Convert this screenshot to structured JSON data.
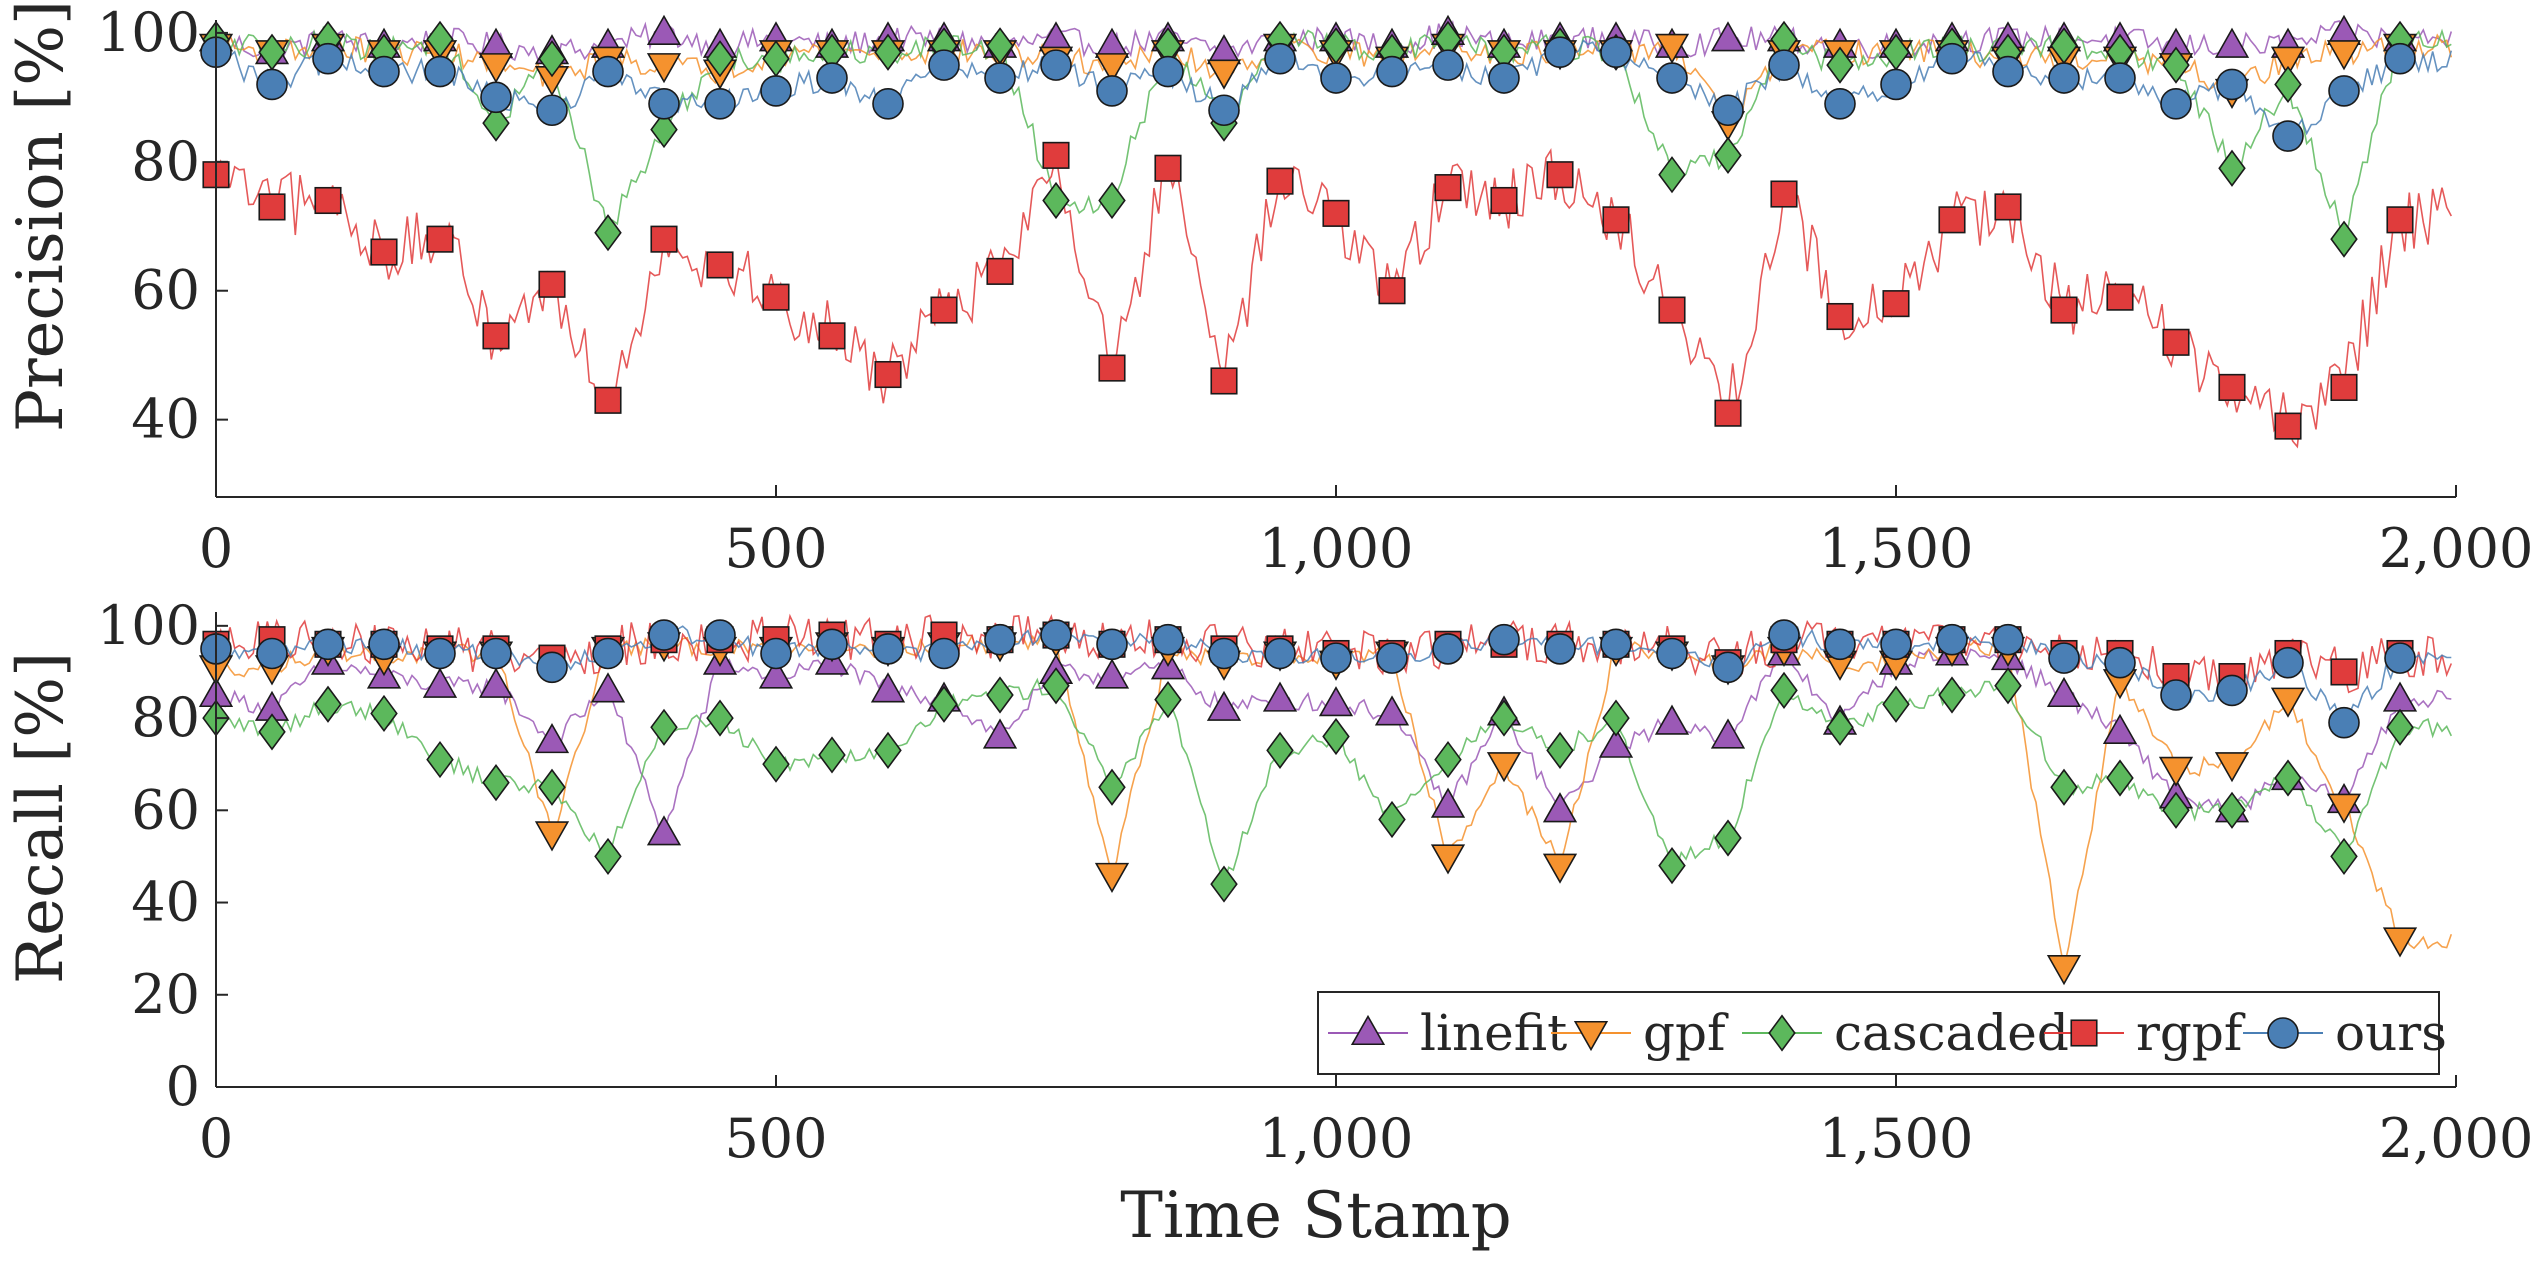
{
  "colors": {
    "linefit": "#9b59b6",
    "gpf": "#f5922e",
    "cascaded": "#5cb85c",
    "rgpf": "#e03c3c",
    "ours": "#4a7fb5"
  },
  "chart_data": [
    {
      "type": "line",
      "ylabel": "Precision [%]",
      "xlabel": "",
      "xlim": [
        0,
        2000
      ],
      "ylim": [
        28,
        102
      ],
      "xticks": [
        0,
        500,
        1000,
        1500,
        2000
      ],
      "xtick_labels": [
        "0",
        "500",
        "1,000",
        "1,500",
        "2,000"
      ],
      "yticks": [
        40,
        60,
        80,
        100
      ],
      "ytick_labels": [
        "40",
        "60",
        "80",
        "100"
      ],
      "x": [
        0,
        50,
        100,
        150,
        200,
        250,
        300,
        350,
        400,
        450,
        500,
        550,
        600,
        650,
        700,
        750,
        800,
        850,
        900,
        950,
        1000,
        1050,
        1100,
        1150,
        1200,
        1250,
        1300,
        1350,
        1400,
        1450,
        1500,
        1550,
        1600,
        1650,
        1700,
        1750,
        1800,
        1850,
        1900,
        1950
      ],
      "series": [
        {
          "name": "linefit",
          "marker": "triangle-up",
          "values": [
            99,
            97,
            99,
            98,
            99,
            98,
            97,
            98,
            100,
            98,
            99,
            98,
            99,
            99,
            98,
            99,
            98,
            99,
            97,
            99,
            99,
            98,
            100,
            98,
            99,
            99,
            98,
            99,
            99,
            98,
            98,
            99,
            99,
            99,
            99,
            98,
            98,
            98,
            100,
            99
          ]
        },
        {
          "name": "gpf",
          "marker": "triangle-down",
          "values": [
            98,
            97,
            98,
            97,
            97,
            95,
            93,
            96,
            95,
            94,
            97,
            97,
            97,
            97,
            97,
            96,
            95,
            97,
            94,
            98,
            97,
            96,
            98,
            97,
            97,
            97,
            98,
            86,
            97,
            97,
            97,
            97,
            96,
            96,
            96,
            95,
            91,
            96,
            97,
            98
          ]
        },
        {
          "name": "cascaded",
          "marker": "diamond",
          "values": [
            99,
            97,
            99,
            97,
            99,
            86,
            96,
            69,
            85,
            96,
            96,
            97,
            97,
            98,
            98,
            74,
            74,
            98,
            86,
            99,
            98,
            97,
            99,
            97,
            98,
            97,
            78,
            81,
            99,
            95,
            97,
            98,
            97,
            98,
            97,
            95,
            79,
            92,
            68,
            99
          ]
        },
        {
          "name": "rgpf",
          "marker": "square",
          "values": [
            78,
            73,
            74,
            66,
            68,
            53,
            61,
            43,
            68,
            64,
            59,
            53,
            47,
            57,
            63,
            81,
            48,
            79,
            46,
            77,
            72,
            60,
            76,
            74,
            78,
            71,
            57,
            41,
            75,
            56,
            58,
            71,
            73,
            57,
            59,
            52,
            45,
            39,
            45,
            71
          ]
        },
        {
          "name": "ours",
          "marker": "circle",
          "values": [
            97,
            92,
            96,
            94,
            94,
            90,
            88,
            94,
            89,
            89,
            91,
            93,
            89,
            95,
            93,
            95,
            91,
            94,
            88,
            96,
            93,
            94,
            95,
            93,
            97,
            97,
            93,
            88,
            95,
            89,
            92,
            96,
            94,
            93,
            93,
            89,
            92,
            84,
            91,
            96
          ]
        }
      ]
    },
    {
      "type": "line",
      "ylabel": "Recall [%]",
      "xlabel": "Time Stamp",
      "xlim": [
        0,
        2000
      ],
      "ylim": [
        0,
        103
      ],
      "xticks": [
        0,
        500,
        1000,
        1500,
        2000
      ],
      "xtick_labels": [
        "0",
        "500",
        "1,000",
        "1,500",
        "2,000"
      ],
      "yticks": [
        0,
        20,
        40,
        60,
        80,
        100
      ],
      "ytick_labels": [
        "0",
        "20",
        "40",
        "60",
        "80",
        "100"
      ],
      "x": [
        0,
        50,
        100,
        150,
        200,
        250,
        300,
        350,
        400,
        450,
        500,
        550,
        600,
        650,
        700,
        750,
        800,
        850,
        900,
        950,
        1000,
        1050,
        1100,
        1150,
        1200,
        1250,
        1300,
        1350,
        1400,
        1450,
        1500,
        1550,
        1600,
        1650,
        1700,
        1750,
        1800,
        1850,
        1900,
        1950
      ],
      "series": [
        {
          "name": "linefit",
          "marker": "triangle-up",
          "values": [
            85,
            82,
            92,
            89,
            87,
            87,
            75,
            86,
            55,
            92,
            89,
            92,
            86,
            84,
            76,
            90,
            89,
            91,
            82,
            84,
            83,
            81,
            61,
            81,
            60,
            74,
            79,
            76,
            94,
            79,
            92,
            94,
            93,
            85,
            77,
            63,
            60,
            67,
            62,
            84
          ]
        },
        {
          "name": "gpf",
          "marker": "triangle-down",
          "values": [
            91,
            91,
            95,
            93,
            94,
            94,
            55,
            95,
            96,
            95,
            95,
            96,
            95,
            96,
            96,
            97,
            46,
            95,
            92,
            94,
            92,
            94,
            50,
            70,
            48,
            95,
            94,
            91,
            95,
            92,
            92,
            95,
            95,
            26,
            88,
            69,
            70,
            84,
            61,
            32
          ]
        },
        {
          "name": "cascaded",
          "marker": "diamond",
          "values": [
            80,
            77,
            83,
            81,
            71,
            66,
            65,
            50,
            78,
            80,
            70,
            72,
            73,
            83,
            85,
            87,
            65,
            84,
            44,
            73,
            76,
            58,
            71,
            80,
            73,
            80,
            48,
            54,
            86,
            78,
            83,
            85,
            87,
            65,
            67,
            60,
            60,
            67,
            50,
            78
          ]
        },
        {
          "name": "rgpf",
          "marker": "square",
          "values": [
            96,
            97,
            96,
            96,
            95,
            95,
            93,
            95,
            97,
            97,
            97,
            98,
            96,
            98,
            97,
            98,
            96,
            97,
            95,
            95,
            94,
            94,
            96,
            96,
            96,
            96,
            95,
            92,
            97,
            96,
            96,
            97,
            97,
            94,
            94,
            89,
            89,
            94,
            90,
            94
          ]
        },
        {
          "name": "ours",
          "marker": "circle",
          "values": [
            95,
            94,
            96,
            96,
            94,
            94,
            91,
            94,
            98,
            98,
            94,
            96,
            95,
            94,
            97,
            98,
            96,
            97,
            94,
            94,
            93,
            93,
            95,
            97,
            95,
            96,
            94,
            91,
            98,
            96,
            96,
            97,
            97,
            93,
            92,
            85,
            86,
            92,
            79,
            93
          ]
        }
      ],
      "legend": {
        "placement": "bottom-right",
        "orientation": "horizontal",
        "entries": [
          "linefit",
          "gpf",
          "cascaded",
          "rgpf",
          "ours"
        ]
      }
    }
  ]
}
